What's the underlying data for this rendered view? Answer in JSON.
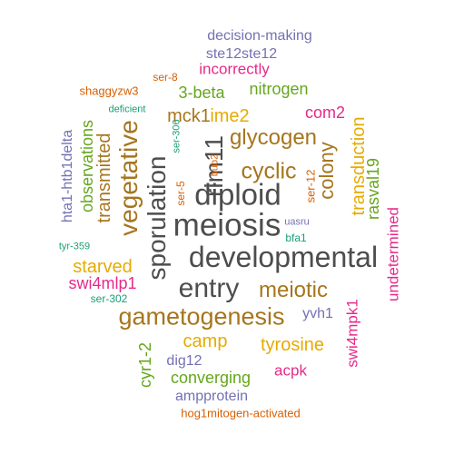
{
  "colors": {
    "gray": "#4d4d4d",
    "brown": "#a6761d",
    "orange": "#e6ab02",
    "green": "#66a61e",
    "magenta": "#e7298a",
    "purple": "#7570b3",
    "teal": "#1b9e77",
    "rust": "#d95f02"
  },
  "words": [
    {
      "text": "developmental",
      "color": "gray"
    },
    {
      "text": "meiosis",
      "color": "gray"
    },
    {
      "text": "diploid",
      "color": "gray"
    },
    {
      "text": "entry",
      "color": "gray"
    },
    {
      "text": "sporulation",
      "color": "gray"
    },
    {
      "text": "rim11",
      "color": "gray"
    },
    {
      "text": "gametogenesis",
      "color": "brown"
    },
    {
      "text": "vegetative",
      "color": "brown"
    },
    {
      "text": "cyclic",
      "color": "brown"
    },
    {
      "text": "glycogen",
      "color": "brown"
    },
    {
      "text": "meiotic",
      "color": "brown"
    },
    {
      "text": "colony",
      "color": "brown"
    },
    {
      "text": "transmitted",
      "color": "brown"
    },
    {
      "text": "mck1",
      "color": "brown"
    },
    {
      "text": "ime2",
      "color": "orange"
    },
    {
      "text": "transduction",
      "color": "orange"
    },
    {
      "text": "starved",
      "color": "orange"
    },
    {
      "text": "camp",
      "color": "orange"
    },
    {
      "text": "tyrosine",
      "color": "orange"
    },
    {
      "text": "3-beta",
      "color": "green"
    },
    {
      "text": "nitrogen",
      "color": "green"
    },
    {
      "text": "observations",
      "color": "green"
    },
    {
      "text": "rasval19",
      "color": "green"
    },
    {
      "text": "converging",
      "color": "green"
    },
    {
      "text": "cyr1-2",
      "color": "green"
    },
    {
      "text": "com2",
      "color": "magenta"
    },
    {
      "text": "swi4mlp1",
      "color": "magenta"
    },
    {
      "text": "incorrectly",
      "color": "magenta"
    },
    {
      "text": "undetermined",
      "color": "magenta"
    },
    {
      "text": "swi4mpk1",
      "color": "magenta"
    },
    {
      "text": "acpk",
      "color": "magenta"
    },
    {
      "text": "decision-making",
      "color": "purple"
    },
    {
      "text": "ste12ste12",
      "color": "purple"
    },
    {
      "text": "hta1-htb1delta",
      "color": "purple"
    },
    {
      "text": "yvh1",
      "color": "purple"
    },
    {
      "text": "dig12",
      "color": "purple"
    },
    {
      "text": "ampprotein",
      "color": "purple"
    },
    {
      "text": "uasru",
      "color": "purple"
    },
    {
      "text": "deficient",
      "color": "teal"
    },
    {
      "text": "ser-306",
      "color": "teal"
    },
    {
      "text": "bfa1",
      "color": "teal"
    },
    {
      "text": "tyr-359",
      "color": "teal"
    },
    {
      "text": "ser-302",
      "color": "teal"
    },
    {
      "text": "ser-8",
      "color": "rust"
    },
    {
      "text": "shaggyzw3",
      "color": "rust"
    },
    {
      "text": "bub2",
      "color": "rust"
    },
    {
      "text": "ser-5",
      "color": "rust"
    },
    {
      "text": "ser-12",
      "color": "rust"
    },
    {
      "text": "hog1mitogen-activated",
      "color": "rust"
    }
  ]
}
